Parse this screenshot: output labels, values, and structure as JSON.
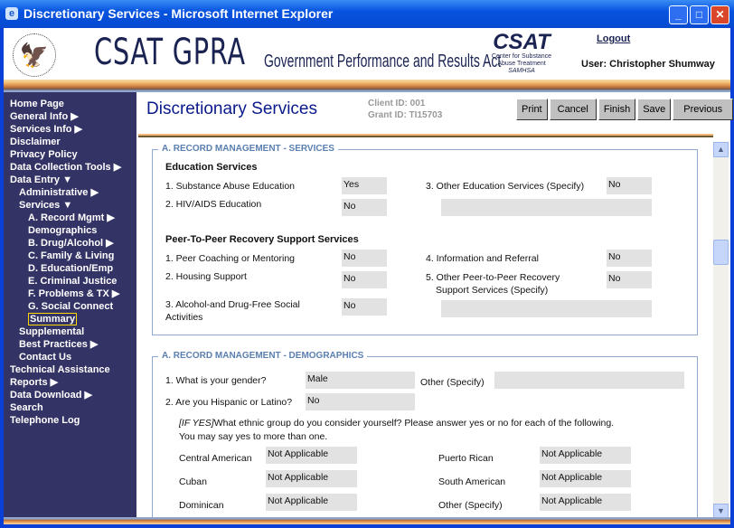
{
  "window": {
    "title": "Discretionary Services - Microsoft Internet Explorer"
  },
  "header": {
    "brand": "CSAT GPRA",
    "subtitle": "Government Performance and Results Act",
    "csat_logo": "CSAT",
    "csat_line1": "Center for Substance",
    "csat_line2": "Abuse Treatment",
    "csat_line3": "SAMHSA",
    "logout": "Logout",
    "user": "User: Christopher Shumway"
  },
  "nav": [
    {
      "label": "Home Page",
      "level": 0
    },
    {
      "label": "General Info ▶",
      "level": 0
    },
    {
      "label": "Services Info ▶",
      "level": 0
    },
    {
      "label": "Disclaimer",
      "level": 0
    },
    {
      "label": "Privacy Policy",
      "level": 0
    },
    {
      "label": "Data Collection Tools ▶",
      "level": 0
    },
    {
      "label": "Data Entry ▼",
      "level": 0
    },
    {
      "label": "Administrative ▶",
      "level": 1
    },
    {
      "label": "Services ▼",
      "level": 1
    },
    {
      "label": "A. Record Mgmt ▶",
      "level": 2
    },
    {
      "label": "Demographics",
      "level": 2
    },
    {
      "label": "B. Drug/Alcohol ▶",
      "level": 2
    },
    {
      "label": "C. Family & Living",
      "level": 2
    },
    {
      "label": "D. Education/Emp",
      "level": 2
    },
    {
      "label": "E. Criminal Justice",
      "level": 2
    },
    {
      "label": "F. Problems & TX ▶",
      "level": 2
    },
    {
      "label": "G. Social Connect",
      "level": 2
    },
    {
      "label": "Summary",
      "level": 2,
      "selected": true
    },
    {
      "label": "Supplemental",
      "level": 1
    },
    {
      "label": "Best Practices ▶",
      "level": 1
    },
    {
      "label": "Contact Us",
      "level": 1
    },
    {
      "label": "Technical Assistance",
      "level": 0
    },
    {
      "label": "Reports ▶",
      "level": 0
    },
    {
      "label": "Data Download ▶",
      "level": 0
    },
    {
      "label": "Search",
      "level": 0
    },
    {
      "label": "Telephone Log",
      "level": 0
    }
  ],
  "page": {
    "title": "Discretionary Services",
    "client_id": "Client ID: 001",
    "grant_id": "Grant ID: TI15703",
    "buttons": [
      "Print",
      "Cancel",
      "Finish",
      "Save",
      "Previous"
    ]
  },
  "services": {
    "legend": "A. RECORD MANAGEMENT - SERVICES",
    "edu_heading": "Education Services",
    "q1": "1. Substance Abuse Education",
    "v1": "Yes",
    "q2": "2. HIV/AIDS Education",
    "v2": "No",
    "q3": "3. Other Education Services (Specify)",
    "v3": "No",
    "peer_heading": "Peer-To-Peer Recovery Support Services",
    "p1": "1. Peer Coaching or Mentoring",
    "pv1": "No",
    "p2": "2. Housing Support",
    "pv2": "No",
    "p3a": "3. Alcohol-and Drug-Free Social",
    "p3b": "Activities",
    "pv3": "No",
    "p4": "4. Information and Referral",
    "pv4": "No",
    "p5a": "5. Other Peer-to-Peer Recovery",
    "p5b": "Support Services (Specify)",
    "pv5": "No"
  },
  "demo": {
    "legend": "A. RECORD MANAGEMENT - DEMOGRAPHICS",
    "q1": "1. What is your gender?",
    "v1": "Male",
    "other": "Other (Specify)",
    "q2": "2. Are you Hispanic or Latino?",
    "v2": "No",
    "ifyes": "[IF YES]",
    "instr1": "What ethnic group do you consider yourself? Please answer yes or no for each of the following.",
    "instr2": "You may say yes to more than one.",
    "e1": "Central American",
    "ev1": "Not Applicable",
    "e2": "Cuban",
    "ev2": "Not Applicable",
    "e3": "Dominican",
    "ev3": "Not Applicable",
    "e4": "Puerto Rican",
    "ev4": "Not Applicable",
    "e5": "South American",
    "ev5": "Not Applicable",
    "e6": "Other (Specify)",
    "ev6": "Not Applicable"
  }
}
